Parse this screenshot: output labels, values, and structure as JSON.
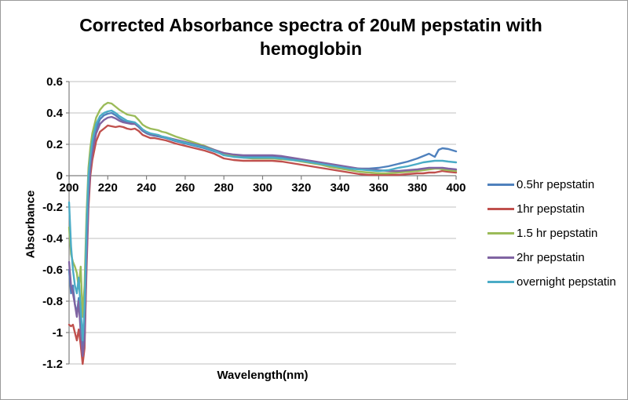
{
  "chart_data": {
    "type": "line",
    "title": "Corrected Absorbance spectra of 20uM pepstatin with hemoglobin",
    "title_lines": [
      "Corrected Absorbance spectra of 20uM pepstatin with",
      "hemoglobin"
    ],
    "xlabel": "Wavelength(nm)",
    "ylabel": "Absorbance",
    "xlim": [
      200,
      400
    ],
    "ylim": [
      -1.2,
      0.6
    ],
    "x_ticks": [
      200,
      220,
      240,
      260,
      280,
      300,
      320,
      340,
      360,
      380,
      400
    ],
    "y_ticks": [
      0.6,
      0.4,
      0.2,
      0,
      -0.2,
      -0.4,
      -0.6,
      -0.8,
      -1,
      -1.2
    ],
    "y_tick_labels": [
      "0.6",
      "0.4",
      "0.2",
      "0",
      "-0.2",
      "-0.4",
      "-0.6",
      "-0.8",
      "-1",
      "-1.2"
    ],
    "grid": "horizontal gridlines on",
    "legend_position": "right",
    "gridline_color": "#bfbfbf",
    "axis_color": "#7f7f7f",
    "x": [
      200,
      201,
      202,
      203,
      204,
      205,
      206,
      207,
      208,
      209,
      210,
      211,
      212,
      214,
      216,
      218,
      220,
      222,
      224,
      226,
      228,
      230,
      232,
      234,
      236,
      238,
      240,
      242,
      244,
      246,
      248,
      250,
      255,
      260,
      265,
      270,
      275,
      280,
      285,
      290,
      295,
      300,
      305,
      310,
      315,
      320,
      325,
      330,
      335,
      340,
      345,
      350,
      355,
      360,
      365,
      370,
      375,
      380,
      383,
      386,
      389,
      391,
      393,
      396,
      400
    ],
    "series": [
      {
        "name": "0.5hr pepstatin",
        "color": "#4F81BD",
        "values": [
          -0.6,
          -0.75,
          -0.7,
          -0.82,
          -0.88,
          -0.78,
          -0.95,
          -1.1,
          -0.95,
          -0.45,
          -0.1,
          0.08,
          0.18,
          0.3,
          0.36,
          0.385,
          0.395,
          0.4,
          0.385,
          0.365,
          0.35,
          0.34,
          0.335,
          0.33,
          0.31,
          0.285,
          0.27,
          0.26,
          0.255,
          0.25,
          0.245,
          0.24,
          0.22,
          0.205,
          0.19,
          0.175,
          0.155,
          0.135,
          0.125,
          0.12,
          0.12,
          0.12,
          0.12,
          0.115,
          0.105,
          0.095,
          0.085,
          0.075,
          0.065,
          0.06,
          0.05,
          0.045,
          0.045,
          0.05,
          0.06,
          0.075,
          0.09,
          0.11,
          0.125,
          0.14,
          0.12,
          0.165,
          0.175,
          0.17,
          0.155
        ]
      },
      {
        "name": "1hr pepstatin",
        "color": "#C0504D",
        "values": [
          -0.95,
          -0.96,
          -0.95,
          -1.0,
          -1.05,
          -0.98,
          -1.08,
          -1.2,
          -1.1,
          -0.6,
          -0.2,
          0.0,
          0.1,
          0.22,
          0.28,
          0.3,
          0.32,
          0.315,
          0.31,
          0.315,
          0.31,
          0.3,
          0.295,
          0.3,
          0.285,
          0.26,
          0.25,
          0.24,
          0.24,
          0.235,
          0.23,
          0.225,
          0.205,
          0.19,
          0.175,
          0.16,
          0.14,
          0.11,
          0.1,
          0.095,
          0.095,
          0.095,
          0.095,
          0.09,
          0.08,
          0.07,
          0.06,
          0.05,
          0.04,
          0.03,
          0.02,
          0.01,
          0.005,
          0.005,
          0.005,
          0.005,
          0.01,
          0.015,
          0.015,
          0.02,
          0.02,
          0.025,
          0.03,
          0.025,
          0.02
        ]
      },
      {
        "name": "1.5 hr pepstatin",
        "color": "#9BBB59",
        "values": [
          -0.33,
          -0.5,
          -0.55,
          -0.58,
          -0.62,
          -0.72,
          -0.58,
          -0.9,
          -0.7,
          -0.25,
          0.05,
          0.18,
          0.27,
          0.37,
          0.42,
          0.45,
          0.465,
          0.46,
          0.44,
          0.42,
          0.405,
          0.39,
          0.385,
          0.38,
          0.355,
          0.325,
          0.31,
          0.3,
          0.295,
          0.29,
          0.28,
          0.275,
          0.25,
          0.23,
          0.21,
          0.19,
          0.165,
          0.14,
          0.125,
          0.115,
          0.11,
          0.11,
          0.11,
          0.105,
          0.1,
          0.09,
          0.08,
          0.07,
          0.055,
          0.045,
          0.035,
          0.025,
          0.02,
          0.015,
          0.015,
          0.02,
          0.025,
          0.03,
          0.035,
          0.04,
          0.045,
          0.045,
          0.04,
          0.035,
          0.03
        ]
      },
      {
        "name": "2hr pepstatin",
        "color": "#8064A2",
        "values": [
          -0.55,
          -0.7,
          -0.75,
          -0.82,
          -0.9,
          -0.8,
          -1.0,
          -1.15,
          -1.05,
          -0.55,
          -0.15,
          0.05,
          0.15,
          0.27,
          0.33,
          0.355,
          0.37,
          0.375,
          0.365,
          0.35,
          0.34,
          0.335,
          0.33,
          0.33,
          0.315,
          0.29,
          0.275,
          0.265,
          0.26,
          0.255,
          0.25,
          0.245,
          0.23,
          0.215,
          0.2,
          0.185,
          0.165,
          0.145,
          0.135,
          0.13,
          0.13,
          0.13,
          0.13,
          0.125,
          0.115,
          0.105,
          0.095,
          0.085,
          0.075,
          0.065,
          0.055,
          0.045,
          0.04,
          0.035,
          0.03,
          0.03,
          0.035,
          0.04,
          0.045,
          0.05,
          0.05,
          0.05,
          0.05,
          0.045,
          0.04
        ]
      },
      {
        "name": "overnight pepstatin",
        "color": "#4BACC6",
        "values": [
          -0.17,
          -0.45,
          -0.6,
          -0.7,
          -0.75,
          -0.65,
          -0.85,
          -1.05,
          -0.85,
          -0.35,
          0.0,
          0.12,
          0.22,
          0.33,
          0.38,
          0.4,
          0.41,
          0.415,
          0.4,
          0.38,
          0.365,
          0.35,
          0.345,
          0.34,
          0.32,
          0.295,
          0.28,
          0.27,
          0.265,
          0.26,
          0.25,
          0.245,
          0.225,
          0.21,
          0.195,
          0.18,
          0.16,
          0.13,
          0.12,
          0.115,
          0.115,
          0.115,
          0.115,
          0.11,
          0.1,
          0.095,
          0.085,
          0.075,
          0.065,
          0.055,
          0.045,
          0.04,
          0.035,
          0.03,
          0.035,
          0.05,
          0.06,
          0.075,
          0.085,
          0.09,
          0.095,
          0.095,
          0.095,
          0.09,
          0.085
        ]
      }
    ]
  }
}
